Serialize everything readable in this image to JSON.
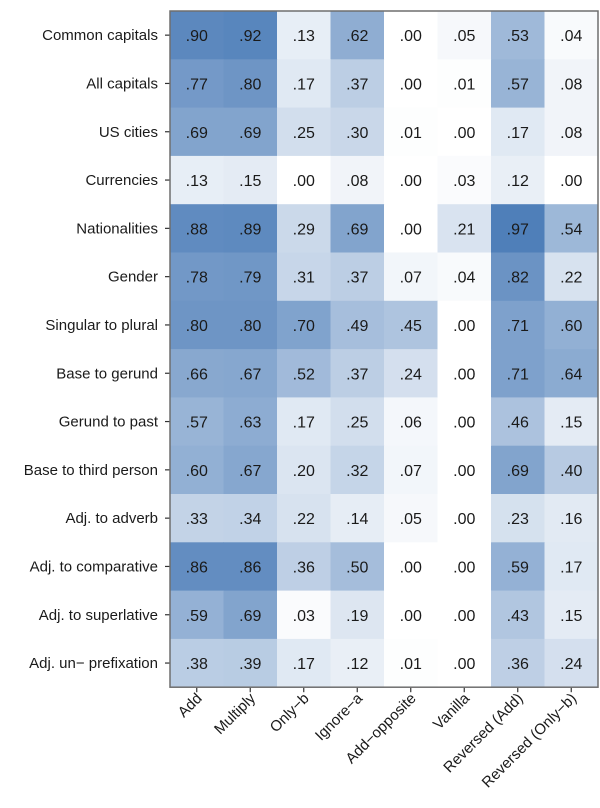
{
  "chart_data": {
    "type": "heatmap",
    "rows": [
      "Common capitals",
      "All capitals",
      "US cities",
      "Currencies",
      "Nationalities",
      "Gender",
      "Singular to plural",
      "Base to gerund",
      "Gerund to past",
      "Base to third person",
      "Adj. to adverb",
      "Adj. to comparative",
      "Adj. to superlative",
      "Adj. un− prefixation"
    ],
    "columns": [
      "Add",
      "Multiply",
      "Only−b",
      "Ignore−a",
      "Add−opposite",
      "Vanilla",
      "Reversed (Add)",
      "Reversed (Only−b)"
    ],
    "values": [
      [
        0.9,
        0.92,
        0.13,
        0.62,
        0.0,
        0.05,
        0.53,
        0.04
      ],
      [
        0.77,
        0.8,
        0.17,
        0.37,
        0.0,
        0.01,
        0.57,
        0.08
      ],
      [
        0.69,
        0.69,
        0.25,
        0.3,
        0.01,
        0.0,
        0.17,
        0.08
      ],
      [
        0.13,
        0.15,
        0.0,
        0.08,
        0.0,
        0.03,
        0.12,
        0.0
      ],
      [
        0.88,
        0.89,
        0.29,
        0.69,
        0.0,
        0.21,
        0.97,
        0.54
      ],
      [
        0.78,
        0.79,
        0.31,
        0.37,
        0.07,
        0.04,
        0.82,
        0.22
      ],
      [
        0.8,
        0.8,
        0.7,
        0.49,
        0.45,
        0.0,
        0.71,
        0.6
      ],
      [
        0.66,
        0.67,
        0.52,
        0.37,
        0.24,
        0.0,
        0.71,
        0.64
      ],
      [
        0.57,
        0.63,
        0.17,
        0.25,
        0.06,
        0.0,
        0.46,
        0.15
      ],
      [
        0.6,
        0.67,
        0.2,
        0.32,
        0.07,
        0.0,
        0.69,
        0.4
      ],
      [
        0.33,
        0.34,
        0.22,
        0.14,
        0.05,
        0.0,
        0.23,
        0.16
      ],
      [
        0.86,
        0.86,
        0.36,
        0.5,
        0.0,
        0.0,
        0.59,
        0.17
      ],
      [
        0.59,
        0.69,
        0.03,
        0.19,
        0.0,
        0.0,
        0.43,
        0.15
      ],
      [
        0.38,
        0.39,
        0.17,
        0.12,
        0.01,
        0.0,
        0.36,
        0.24
      ]
    ],
    "value_labels": [
      [
        ".90",
        ".92",
        ".13",
        ".62",
        ".00",
        ".05",
        ".53",
        ".04"
      ],
      [
        ".77",
        ".80",
        ".17",
        ".37",
        ".00",
        ".01",
        ".57",
        ".08"
      ],
      [
        ".69",
        ".69",
        ".25",
        ".30",
        ".01",
        ".00",
        ".17",
        ".08"
      ],
      [
        ".13",
        ".15",
        ".00",
        ".08",
        ".00",
        ".03",
        ".12",
        ".00"
      ],
      [
        ".88",
        ".89",
        ".29",
        ".69",
        ".00",
        ".21",
        ".97",
        ".54"
      ],
      [
        ".78",
        ".79",
        ".31",
        ".37",
        ".07",
        ".04",
        ".82",
        ".22"
      ],
      [
        ".80",
        ".80",
        ".70",
        ".49",
        ".45",
        ".00",
        ".71",
        ".60"
      ],
      [
        ".66",
        ".67",
        ".52",
        ".37",
        ".24",
        ".00",
        ".71",
        ".64"
      ],
      [
        ".57",
        ".63",
        ".17",
        ".25",
        ".06",
        ".00",
        ".46",
        ".15"
      ],
      [
        ".60",
        ".67",
        ".20",
        ".32",
        ".07",
        ".00",
        ".69",
        ".40"
      ],
      [
        ".33",
        ".34",
        ".22",
        ".14",
        ".05",
        ".00",
        ".23",
        ".16"
      ],
      [
        ".86",
        ".86",
        ".36",
        ".50",
        ".00",
        ".00",
        ".59",
        ".17"
      ],
      [
        ".59",
        ".69",
        ".03",
        ".19",
        ".00",
        ".00",
        ".43",
        ".15"
      ],
      [
        ".38",
        ".39",
        ".17",
        ".12",
        ".01",
        ".00",
        ".36",
        ".24"
      ]
    ],
    "value_range": [
      0,
      1
    ],
    "color_low": "#ffffff",
    "color_high": "#4a7bb7",
    "legend": "none",
    "grid": false
  }
}
